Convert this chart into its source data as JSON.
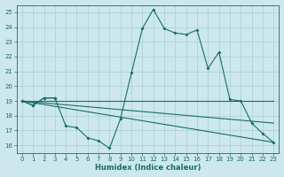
{
  "xlabel": "Humidex (Indice chaleur)",
  "bg_color": "#cce8ec",
  "grid_color": "#aacdd4",
  "line_color": "#1a6b6b",
  "xlim": [
    -0.5,
    23.5
  ],
  "ylim": [
    15.5,
    25.5
  ],
  "yticks": [
    16,
    17,
    18,
    19,
    20,
    21,
    22,
    23,
    24,
    25
  ],
  "xticks": [
    0,
    1,
    2,
    3,
    4,
    5,
    6,
    7,
    8,
    9,
    10,
    11,
    12,
    13,
    14,
    15,
    16,
    17,
    18,
    19,
    20,
    21,
    22,
    23
  ],
  "line1_x": [
    0,
    1,
    2,
    3,
    4,
    5,
    6,
    7,
    8,
    9,
    10,
    11,
    12,
    13,
    14,
    15,
    16,
    17,
    18,
    19,
    20,
    21,
    22,
    23
  ],
  "line1_y": [
    19.0,
    18.7,
    19.2,
    19.2,
    17.3,
    17.2,
    16.5,
    16.3,
    15.8,
    17.8,
    20.9,
    23.9,
    25.2,
    23.9,
    23.6,
    23.5,
    23.8,
    21.2,
    22.3,
    19.1,
    19.0,
    17.5,
    16.8,
    16.2
  ],
  "line2_x": [
    0,
    1,
    2,
    3
  ],
  "line2_y": [
    19.0,
    18.7,
    19.2,
    19.2
  ],
  "line3_x": [
    0,
    23
  ],
  "line3_y": [
    19.0,
    19.0
  ],
  "line4_x": [
    0,
    23
  ],
  "line4_y": [
    19.0,
    17.5
  ],
  "line5_x": [
    0,
    23
  ],
  "line5_y": [
    19.0,
    16.2
  ]
}
